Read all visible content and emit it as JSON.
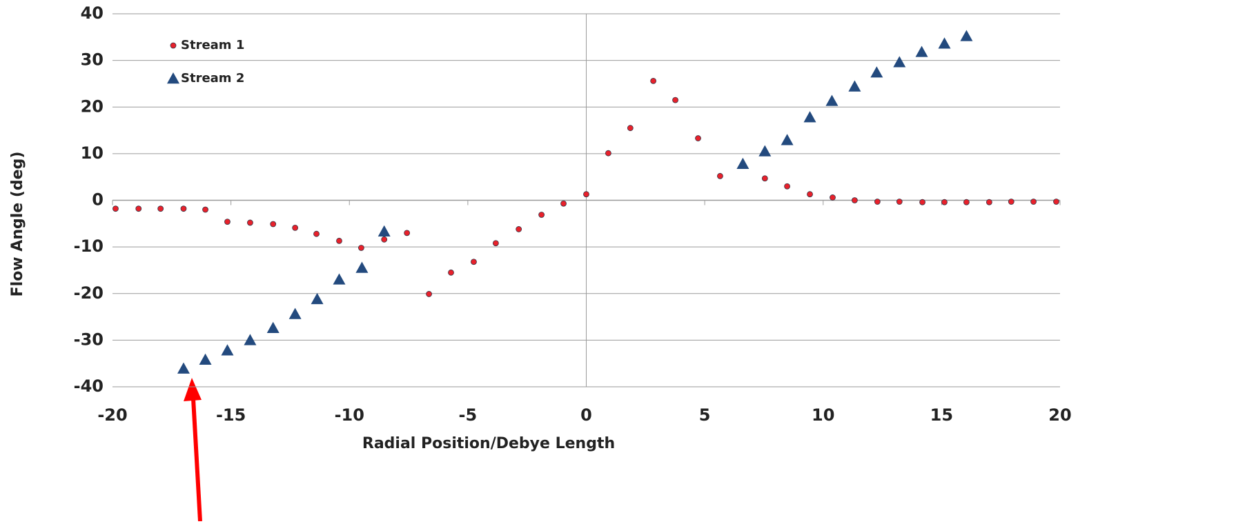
{
  "chart_data": {
    "type": "scatter",
    "xlabel": "Radial Position/Debye Length",
    "ylabel": "Flow Angle (deg)",
    "xlim": [
      -20,
      20
    ],
    "xticks": [
      -20,
      -15,
      -10,
      -5,
      0,
      5,
      10,
      15,
      20
    ],
    "ylim": [
      -40,
      40
    ],
    "yticks": [
      -40,
      -30,
      -20,
      -10,
      0,
      10,
      20,
      30,
      40
    ],
    "grid": true,
    "legend": "upper left",
    "series": [
      {
        "name": "Stream 1",
        "color": "#e8212b",
        "marker": "circle",
        "x": [
          -19.87,
          -18.9,
          -17.97,
          -17.0,
          -16.08,
          -15.15,
          -14.19,
          -13.22,
          -12.29,
          -11.39,
          -10.43,
          -9.5,
          -8.53,
          -7.57,
          -6.64,
          -5.71,
          -4.75,
          -3.82,
          -2.85,
          -1.89,
          -0.96,
          0,
          0.93,
          1.86,
          2.83,
          3.76,
          4.72,
          5.65,
          7.54,
          8.48,
          9.44,
          10.4,
          11.33,
          12.29,
          13.22,
          14.19,
          15.12,
          16.05,
          17.01,
          17.94,
          18.88,
          19.84
        ],
        "values": [
          -1.8,
          -1.8,
          -1.8,
          -1.8,
          -2.0,
          -4.6,
          -4.8,
          -5.1,
          -5.9,
          -7.2,
          -8.7,
          -10.2,
          -8.4,
          -7.0,
          -20.1,
          -15.5,
          -13.2,
          -9.2,
          -6.2,
          -3.1,
          -0.7,
          1.3,
          10.1,
          15.5,
          25.6,
          21.5,
          13.3,
          5.2,
          4.7,
          3.0,
          1.3,
          0.6,
          0,
          -0.3,
          -0.3,
          -0.4,
          -0.4,
          -0.4,
          -0.4,
          -0.3,
          -0.3,
          -0.3
        ]
      },
      {
        "name": "Stream 2",
        "color": "#234a7e",
        "marker": "triangle",
        "x": [
          -17.0,
          -16.08,
          -15.15,
          -14.19,
          -13.22,
          -12.29,
          -11.36,
          -10.43,
          -9.47,
          -8.53,
          6.61,
          7.54,
          8.48,
          9.44,
          10.37,
          11.33,
          12.26,
          13.22,
          14.16,
          15.12,
          16.05
        ],
        "values": [
          -36.1,
          -34.2,
          -32.2,
          -30.0,
          -27.4,
          -24.4,
          -21.2,
          -17.0,
          -14.5,
          -6.7,
          7.8,
          10.5,
          12.9,
          17.8,
          21.3,
          24.4,
          27.4,
          29.6,
          31.8,
          33.6,
          35.2
        ]
      }
    ]
  }
}
